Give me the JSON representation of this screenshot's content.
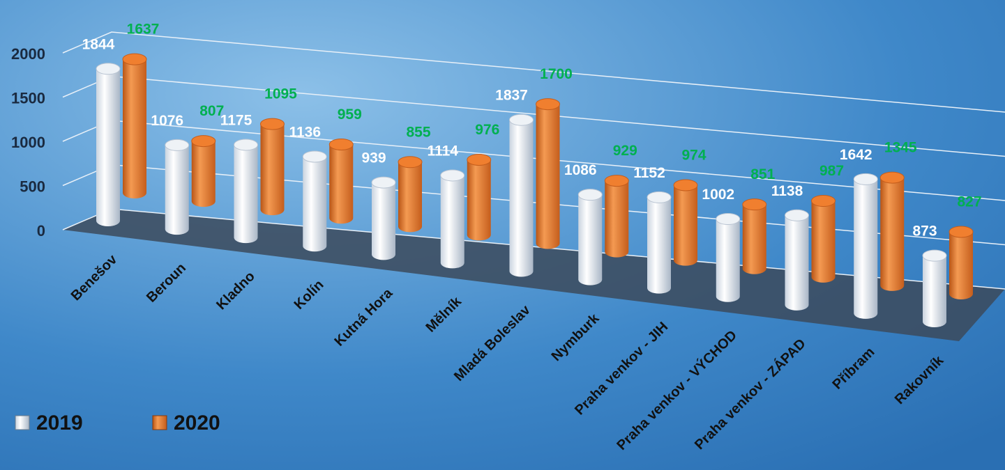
{
  "chart_data": {
    "type": "bar",
    "categories": [
      "Benešov",
      "Beroun",
      "Kladno",
      "Kolín",
      "Kutná Hora",
      "Mělník",
      "Mladá Boleslav",
      "Nymburk",
      "Praha venkov - JIH",
      "Praha venkov - VÝCHOD",
      "Praha venkov - ZÁPAD",
      "Příbram",
      "Rakovník"
    ],
    "series": [
      {
        "name": "2019",
        "color": "#ffffff",
        "label_color": "#ffffff",
        "values": [
          1844,
          1076,
          1175,
          1136,
          939,
          1114,
          1837,
          1086,
          1152,
          1002,
          1138,
          1642,
          873
        ]
      },
      {
        "name": "2020",
        "color": "#ed7d31",
        "label_color": "#00b050",
        "values": [
          1637,
          807,
          1095,
          959,
          855,
          976,
          1700,
          929,
          974,
          851,
          987,
          1345,
          827
        ]
      }
    ],
    "ylim": [
      0,
      2000
    ],
    "yticks": [
      0,
      500,
      1000,
      1500,
      2000
    ],
    "grid": true,
    "legend": "bottom-left"
  }
}
